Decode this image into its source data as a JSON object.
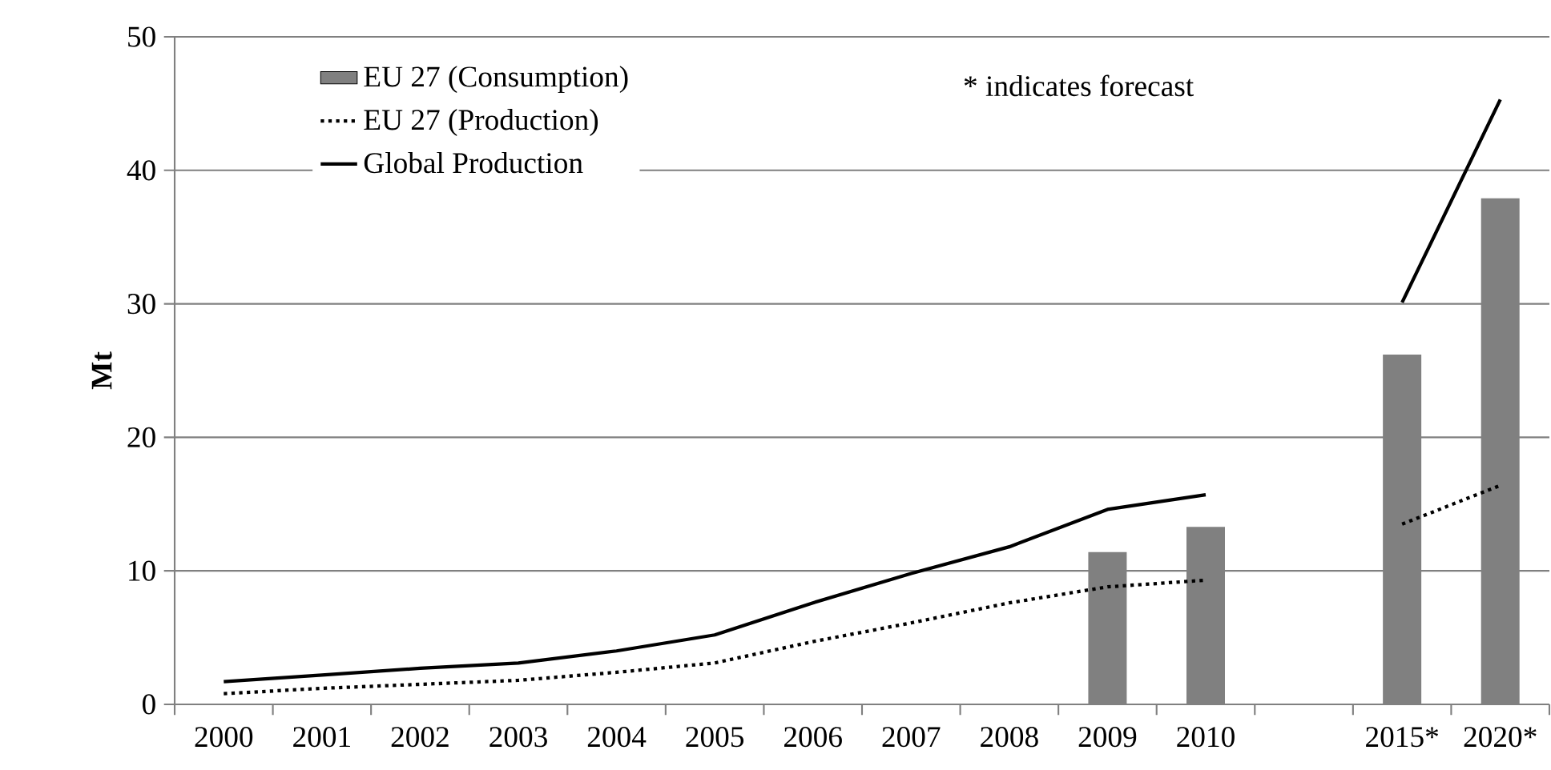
{
  "chart_data": {
    "type": "bar",
    "ylabel": "Mt",
    "categories": [
      "2000",
      "2001",
      "2002",
      "2003",
      "2004",
      "2005",
      "2006",
      "2007",
      "2008",
      "2009",
      "2010",
      null,
      "2015*",
      "2020*"
    ],
    "series": [
      {
        "name": "EU 27 (Consumption)",
        "color": "#808080",
        "values": [
          null,
          null,
          null,
          null,
          null,
          null,
          null,
          null,
          null,
          11.4,
          13.3,
          null,
          26.2,
          37.9
        ]
      },
      {
        "name": "EU 27 (Production)",
        "type": "line",
        "color": "#000000",
        "line_style": "dotted",
        "values": [
          0.8,
          1.2,
          1.5,
          1.8,
          2.4,
          3.1,
          4.7,
          6.1,
          7.6,
          8.8,
          9.3,
          null,
          13.5,
          16.4
        ]
      },
      {
        "name": "Global Production",
        "type": "line",
        "color": "#000000",
        "line_style": "solid",
        "values": [
          1.7,
          2.2,
          2.7,
          3.1,
          4.0,
          5.2,
          7.6,
          9.8,
          11.8,
          14.6,
          15.7,
          null,
          30.1,
          45.3
        ]
      }
    ],
    "ylim": [
      0,
      50
    ],
    "yticks": [
      0,
      10,
      20,
      30,
      40,
      50
    ],
    "grid": "y",
    "legend": "top left",
    "annotations": [
      "* indicates forecast"
    ]
  }
}
